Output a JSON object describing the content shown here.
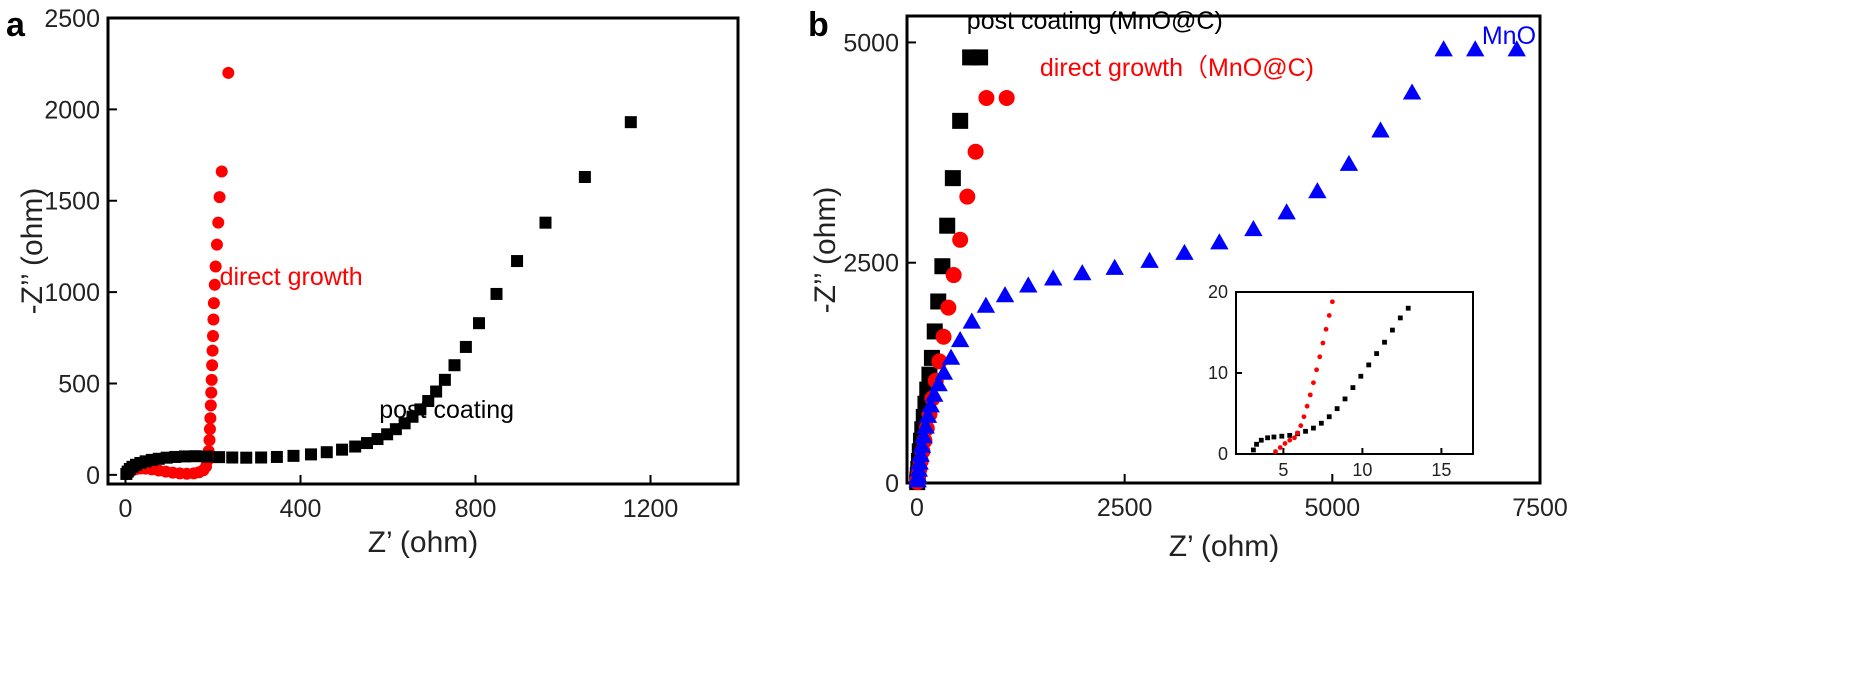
{
  "chart_data": [
    {
      "panel": "a",
      "type": "scatter",
      "xlabel": "Z’ (ohm)",
      "ylabel": "-Z’’ (ohm)",
      "xlim": [
        -40,
        1400
      ],
      "ylim": [
        -50,
        2500
      ],
      "xticks": [
        0,
        400,
        800,
        1200
      ],
      "yticks": [
        0,
        500,
        1000,
        1500,
        2000,
        2500
      ],
      "grid": false,
      "annotations": [
        {
          "text": "direct growth",
          "color": "#ff0000",
          "x": 215,
          "y": 1040
        },
        {
          "text": "post coating",
          "color": "#000000",
          "x": 580,
          "y": 310
        }
      ],
      "series": [
        {
          "name": "direct growth",
          "marker": "circle",
          "color": "#ff0000",
          "x": [
            5,
            10,
            16,
            24,
            34,
            46,
            60,
            76,
            92,
            108,
            124,
            140,
            156,
            168,
            178,
            184,
            188,
            190,
            192,
            193,
            194,
            195,
            196,
            197,
            198,
            199,
            200,
            201,
            202,
            204,
            206,
            209,
            212,
            215,
            220,
            235
          ],
          "y": [
            5,
            15,
            25,
            32,
            35,
            34,
            30,
            24,
            18,
            12,
            8,
            6,
            8,
            14,
            25,
            45,
            80,
            130,
            190,
            250,
            310,
            380,
            450,
            520,
            600,
            680,
            760,
            850,
            940,
            1040,
            1140,
            1260,
            1380,
            1520,
            1660,
            2200
          ]
        },
        {
          "name": "post coating",
          "marker": "square",
          "color": "#000000",
          "x": [
            2,
            5,
            10,
            16,
            24,
            34,
            46,
            60,
            76,
            94,
            114,
            136,
            160,
            186,
            214,
            244,
            276,
            310,
            346,
            384,
            424,
            460,
            495,
            525,
            552,
            576,
            598,
            618,
            638,
            656,
            674,
            692,
            710,
            730,
            752,
            778,
            808,
            848,
            895,
            960,
            1050,
            1155
          ],
          "y": [
            5,
            18,
            32,
            44,
            55,
            65,
            74,
            82,
            88,
            94,
            98,
            101,
            102,
            100,
            97,
            95,
            94,
            95,
            98,
            104,
            112,
            124,
            138,
            155,
            174,
            196,
            222,
            250,
            282,
            318,
            358,
            404,
            456,
            520,
            600,
            700,
            830,
            990,
            1170,
            1380,
            1630,
            1930
          ]
        }
      ]
    },
    {
      "panel": "b",
      "type": "scatter",
      "xlabel": "Z’ (ohm)",
      "ylabel": "-Z’’ (ohm)",
      "xlim": [
        -120,
        7500
      ],
      "ylim": [
        0,
        5300
      ],
      "xticks": [
        0,
        2500,
        5000,
        7500
      ],
      "yticks": [
        0,
        2500,
        5000
      ],
      "grid": false,
      "annotations": [
        {
          "text": "post coating (MnO@C)",
          "color": "#000000",
          "x": 600,
          "y": 5150
        },
        {
          "text": "direct growth（MnO@C)",
          "color": "#ff0000",
          "x": 1480,
          "y": 4620
        },
        {
          "text": "MnO",
          "color": "#0000ff",
          "x": 6800,
          "y": 4980
        }
      ],
      "series": [
        {
          "name": "post coating (MnO@C)",
          "marker": "square",
          "color": "#000000",
          "x": [
            3,
            6,
            10,
            16,
            24,
            34,
            48,
            64,
            82,
            102,
            124,
            150,
            180,
            214,
            256,
            306,
            364,
            432,
            520,
            640,
            760
          ],
          "y": [
            10,
            40,
            90,
            160,
            250,
            360,
            480,
            610,
            750,
            900,
            1060,
            1230,
            1420,
            1720,
            2060,
            2460,
            2920,
            3460,
            4110,
            4830,
            4830
          ]
        },
        {
          "name": "direct growth（MnO@C)",
          "marker": "circle",
          "color": "#ff0000",
          "x": [
            5,
            10,
            18,
            30,
            46,
            66,
            90,
            118,
            150,
            186,
            226,
            270,
            320,
            378,
            442,
            520,
            606,
            706,
            836,
            1080
          ],
          "y": [
            10,
            40,
            90,
            160,
            250,
            360,
            480,
            620,
            780,
            960,
            1160,
            1380,
            1660,
            1990,
            2360,
            2760,
            3250,
            3760,
            4370,
            4370
          ]
        },
        {
          "name": "MnO",
          "marker": "triangle",
          "color": "#0000ff",
          "x": [
            8,
            14,
            22,
            32,
            44,
            60,
            80,
            104,
            132,
            166,
            208,
            260,
            324,
            410,
            520,
            660,
            830,
            1060,
            1340,
            1640,
            1990,
            2380,
            2800,
            3220,
            3640,
            4050,
            4450,
            4820,
            5200,
            5580,
            5960,
            6340,
            6720,
            7220
          ],
          "y": [
            30,
            80,
            150,
            230,
            320,
            420,
            530,
            640,
            760,
            880,
            1000,
            1120,
            1250,
            1420,
            1620,
            1830,
            2010,
            2130,
            2240,
            2320,
            2380,
            2440,
            2520,
            2610,
            2730,
            2880,
            3070,
            3310,
            3620,
            4000,
            4430,
            4920,
            4920,
            4920
          ]
        }
      ],
      "inset": {
        "type": "scatter",
        "xlim": [
          2,
          17
        ],
        "ylim": [
          0,
          20
        ],
        "xticks": [
          5,
          10,
          15
        ],
        "yticks": [
          0,
          10,
          20
        ],
        "ytick_labels": [
          "0",
          "10",
          "20"
        ],
        "series": [
          {
            "name": "post coating (MnO@C)",
            "marker": "square",
            "color": "#000000",
            "x": [
              3.1,
              3.3,
              3.6,
              4.0,
              4.4,
              4.9,
              5.4,
              5.9,
              6.4,
              6.9,
              7.4,
              7.9,
              8.4,
              8.9,
              9.4,
              9.9,
              10.4,
              10.9,
              11.4,
              11.9,
              12.4,
              12.9
            ],
            "y": [
              0.5,
              1.2,
              1.7,
              2.0,
              2.1,
              2.2,
              2.3,
              2.5,
              2.8,
              3.2,
              3.8,
              4.6,
              5.6,
              6.8,
              8.2,
              9.6,
              11.0,
              12.4,
              13.8,
              15.3,
              16.8,
              18.0
            ]
          },
          {
            "name": "direct growth（MnO@C)",
            "marker": "circle",
            "color": "#ff0000",
            "x": [
              4.5,
              4.8,
              5.1,
              5.4,
              5.7,
              5.9,
              6.1,
              6.3,
              6.5,
              6.7,
              6.9,
              7.1,
              7.3,
              7.5,
              7.7,
              7.9,
              8.1
            ],
            "y": [
              0.3,
              0.8,
              1.3,
              1.7,
              2.0,
              2.6,
              3.5,
              4.6,
              5.9,
              7.3,
              8.8,
              10.4,
              12.0,
              13.7,
              15.4,
              17.1,
              18.8
            ]
          }
        ]
      }
    }
  ]
}
